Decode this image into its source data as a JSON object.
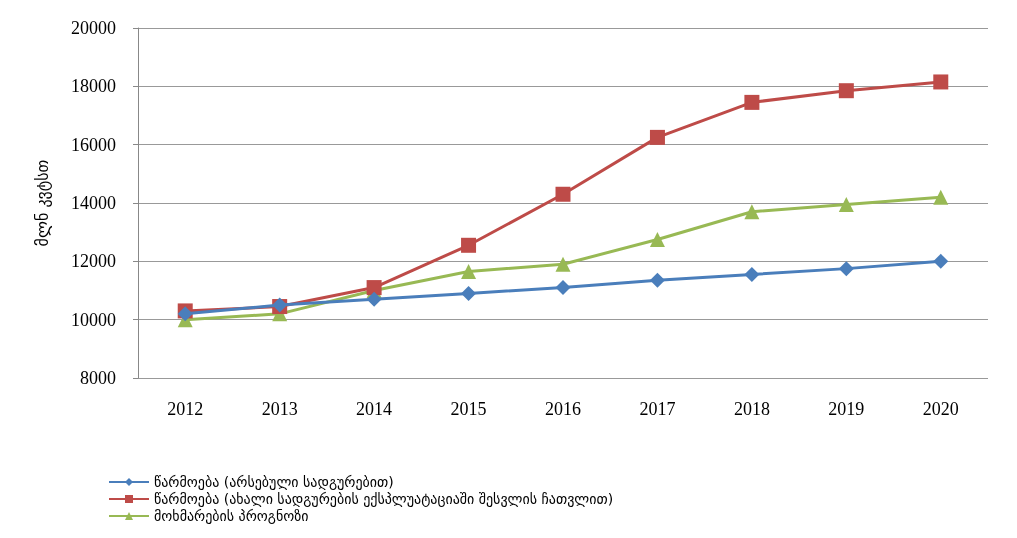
{
  "chart_data": {
    "type": "line",
    "ylabel": "მლნ კვტსთ",
    "categories": [
      "2012",
      "2013",
      "2014",
      "2015",
      "2016",
      "2017",
      "2018",
      "2019",
      "2020"
    ],
    "series": [
      {
        "name": "წარმოება (არსებული სადგურებით)",
        "color": "#4a7ebb",
        "marker": "diamond",
        "values": [
          10200,
          10500,
          10700,
          10900,
          11100,
          11350,
          11550,
          11750,
          12000
        ]
      },
      {
        "name": "წარმოება (ახალი სადგურების ექსპლუატაციაში შესვლის ჩათვლით)",
        "color": "#be4b48",
        "marker": "square",
        "values": [
          10300,
          10450,
          11100,
          12550,
          14300,
          16250,
          17450,
          17850,
          18150
        ]
      },
      {
        "name": "მოხმარების პროგნოზი",
        "color": "#98b954",
        "marker": "triangle",
        "values": [
          10000,
          10200,
          11000,
          11650,
          11900,
          12750,
          13700,
          13950,
          14200
        ]
      }
    ],
    "ylim": [
      8000,
      20000
    ],
    "yticks": [
      8000,
      10000,
      12000,
      14000,
      16000,
      18000,
      20000
    ],
    "grid": "y",
    "legend": "bottom left",
    "line_style": "solid"
  }
}
